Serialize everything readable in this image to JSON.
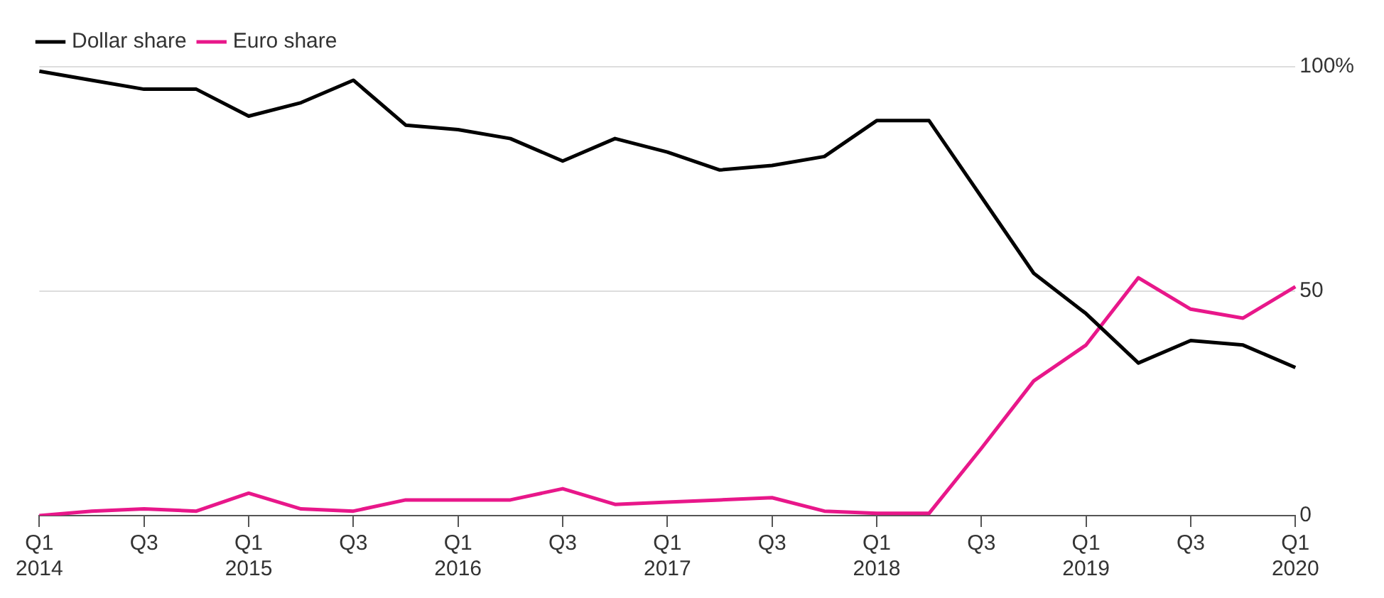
{
  "chart_data": {
    "type": "line",
    "categories": [
      "Q1\n2014",
      null,
      "Q3",
      null,
      "Q1\n2015",
      null,
      "Q3",
      null,
      "Q1\n2016",
      null,
      "Q3",
      null,
      "Q1\n2017",
      null,
      "Q3",
      null,
      "Q1\n2018",
      null,
      "Q3",
      null,
      "Q1\n2019",
      null,
      "Q3",
      null,
      "Q1\n2020"
    ],
    "series": [
      {
        "name": "Dollar share",
        "color": "#000000",
        "values": [
          99,
          97,
          95,
          95,
          89,
          92,
          97,
          87,
          86,
          84,
          79,
          84,
          81,
          77,
          78,
          80,
          88,
          88,
          71,
          54,
          45,
          34,
          39,
          38,
          33
        ]
      },
      {
        "name": "Euro share",
        "color": "#e8178a",
        "values": [
          0,
          1,
          1.5,
          1,
          5,
          1.5,
          1,
          3.5,
          3.5,
          3.5,
          6,
          2.5,
          3,
          3.5,
          4,
          1,
          0.5,
          0.5,
          15,
          30,
          38,
          53,
          46,
          44,
          51
        ]
      }
    ],
    "ylim": [
      0,
      100
    ],
    "yticks": [
      0,
      50,
      {
        "value": 100,
        "label": "100%"
      }
    ],
    "grid": "y",
    "legend": "top left",
    "marker": "none",
    "line_style": "solid"
  }
}
